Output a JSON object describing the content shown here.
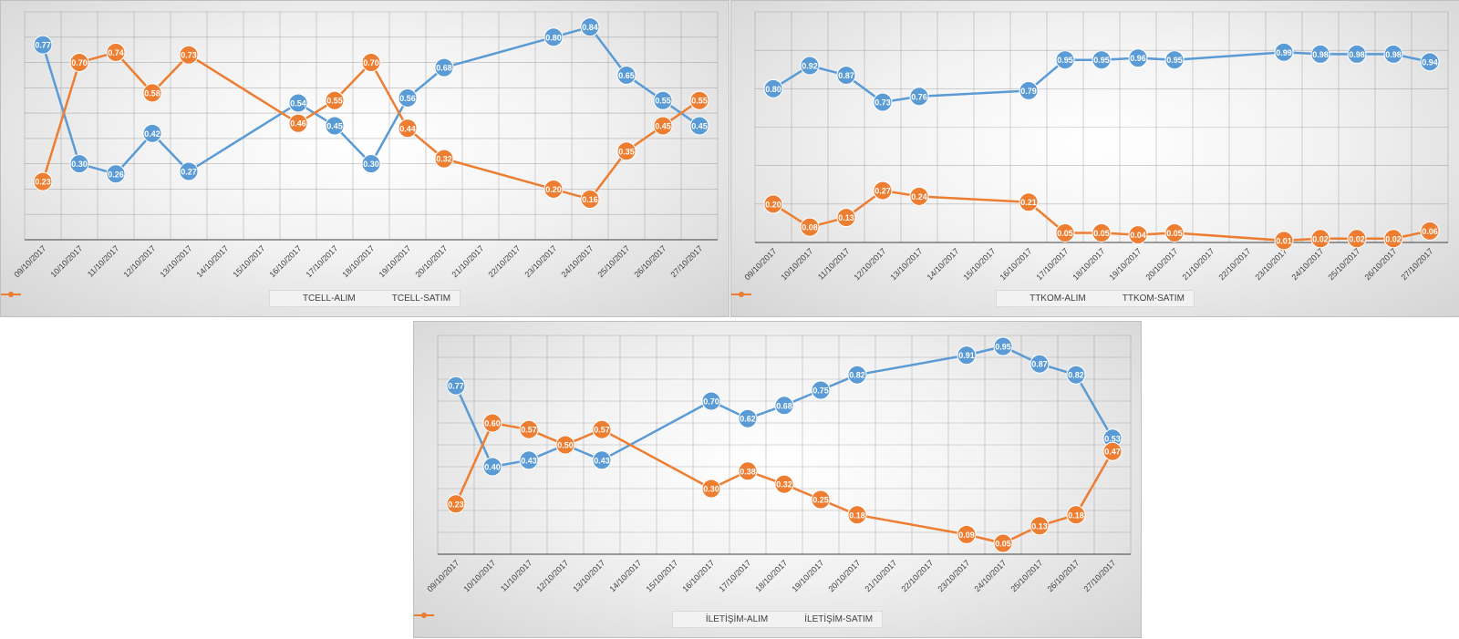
{
  "colors": {
    "alim": "#5B9BD5",
    "satim": "#ED7D31",
    "grid": "#808080",
    "tick": "#404040"
  },
  "chart_data": [
    {
      "type": "line",
      "title": "",
      "xlabel": "",
      "ylabel": "",
      "ylim": [
        0,
        0.9
      ],
      "grid": true,
      "legend": "bottom-center",
      "categories": [
        "09/10/2017",
        "10/10/2017",
        "11/10/2017",
        "12/10/2017",
        "13/10/2017",
        "14/10/2017",
        "15/10/2017",
        "16/10/2017",
        "17/10/2017",
        "18/10/2017",
        "19/10/2017",
        "20/10/2017",
        "21/10/2017",
        "22/10/2017",
        "23/10/2017",
        "24/10/2017",
        "25/10/2017",
        "26/10/2017",
        "27/10/2017"
      ],
      "series": [
        {
          "name": "TCELL-ALIM",
          "color": "#5B9BD5",
          "values": [
            0.77,
            0.3,
            0.26,
            0.42,
            0.27,
            null,
            null,
            0.54,
            0.45,
            0.3,
            0.56,
            0.68,
            null,
            null,
            0.8,
            0.84,
            0.65,
            0.55,
            0.45
          ],
          "labels": [
            "0.77",
            "0.30",
            "0.26",
            "0.42",
            "0.27",
            null,
            null,
            "0.54",
            "0.45",
            "0.30",
            "0.56",
            "0.68",
            null,
            null,
            "0.80",
            "0.84",
            "0.65",
            "0.55",
            "0.45"
          ]
        },
        {
          "name": "TCELL-SATIM",
          "color": "#ED7D31",
          "values": [
            0.23,
            0.7,
            0.74,
            0.58,
            0.73,
            null,
            null,
            0.46,
            0.55,
            0.7,
            0.44,
            0.32,
            null,
            null,
            0.2,
            0.16,
            0.35,
            0.45,
            0.55
          ],
          "labels": [
            "0.23",
            "0.70",
            "0.74",
            "0.58",
            "0.73",
            null,
            null,
            "0.46",
            "0.55",
            "0.70",
            "0.44",
            "0.32",
            null,
            null,
            "0.20",
            "0.16",
            "0.35",
            "0.45",
            "0.55"
          ]
        }
      ]
    },
    {
      "type": "line",
      "title": "",
      "xlabel": "",
      "ylabel": "",
      "ylim": [
        0,
        1.2
      ],
      "grid": true,
      "legend": "bottom-center",
      "categories": [
        "09/10/2017",
        "10/10/2017",
        "11/10/2017",
        "12/10/2017",
        "13/10/2017",
        "14/10/2017",
        "15/10/2017",
        "16/10/2017",
        "17/10/2017",
        "18/10/2017",
        "19/10/2017",
        "20/10/2017",
        "21/10/2017",
        "22/10/2017",
        "23/10/2017",
        "24/10/2017",
        "25/10/2017",
        "26/10/2017",
        "27/10/2017"
      ],
      "series": [
        {
          "name": "TTKOM-ALIM",
          "color": "#5B9BD5",
          "values": [
            0.8,
            0.92,
            0.87,
            0.73,
            0.76,
            null,
            null,
            0.79,
            0.95,
            0.95,
            0.96,
            0.95,
            null,
            null,
            0.99,
            0.98,
            0.98,
            0.98,
            0.94
          ],
          "labels": [
            "0.80",
            "0.92",
            "0.87",
            "0.73",
            "0.76",
            null,
            null,
            "0.79",
            "0.95",
            "0.95",
            "0.96",
            "0.95",
            null,
            null,
            "0.99",
            "0.98",
            "0.98",
            "0.98",
            "0.94"
          ]
        },
        {
          "name": "TTKOM-SATIM",
          "color": "#ED7D31",
          "values": [
            0.2,
            0.08,
            0.13,
            0.27,
            0.24,
            null,
            null,
            0.21,
            0.05,
            0.05,
            0.04,
            0.05,
            null,
            null,
            0.01,
            0.02,
            0.02,
            0.02,
            0.06
          ],
          "labels": [
            "0.20",
            "0.08",
            "0.13",
            "0.27",
            "0.24",
            null,
            null,
            "0.21",
            "0.05",
            "0.05",
            "0.04",
            "0.05",
            null,
            null,
            "0.01",
            "0.02",
            "0.02",
            "0.02",
            "0.06"
          ]
        }
      ]
    },
    {
      "type": "line",
      "title": "",
      "xlabel": "",
      "ylabel": "",
      "ylim": [
        0,
        1.0
      ],
      "grid": true,
      "legend": "bottom-center",
      "categories": [
        "09/10/2017",
        "10/10/2017",
        "11/10/2017",
        "12/10/2017",
        "13/10/2017",
        "14/10/2017",
        "15/10/2017",
        "16/10/2017",
        "17/10/2017",
        "18/10/2017",
        "19/10/2017",
        "20/10/2017",
        "21/10/2017",
        "22/10/2017",
        "23/10/2017",
        "24/10/2017",
        "25/10/2017",
        "26/10/2017",
        "27/10/2017"
      ],
      "series": [
        {
          "name": "İLETİŞİM-ALIM",
          "color": "#5B9BD5",
          "values": [
            0.77,
            0.4,
            0.43,
            0.5,
            0.43,
            null,
            null,
            0.7,
            0.62,
            0.68,
            0.75,
            0.82,
            null,
            null,
            0.91,
            0.95,
            0.87,
            0.82,
            0.53
          ],
          "labels": [
            "0.77",
            "0.40",
            "0.43",
            null,
            "0.43",
            null,
            null,
            "0.70",
            "0.62",
            "0.68",
            "0.75",
            "0.82",
            null,
            null,
            "0.91",
            "0.95",
            "0.87",
            "0.82",
            "0.53"
          ]
        },
        {
          "name": "İLETİŞİM-SATIM",
          "color": "#ED7D31",
          "values": [
            0.23,
            0.6,
            0.57,
            0.5,
            0.57,
            null,
            null,
            0.3,
            0.38,
            0.32,
            0.25,
            0.18,
            null,
            null,
            0.09,
            0.05,
            0.13,
            0.18,
            0.47
          ],
          "labels": [
            "0.23",
            "0.60",
            "0.57",
            "0.50",
            "0.57",
            null,
            null,
            "0.30",
            "0.38",
            "0.32",
            "0.25",
            "0.18",
            null,
            null,
            "0.09",
            "0.05",
            "0.13",
            "0.18",
            "0.47"
          ]
        }
      ]
    }
  ]
}
